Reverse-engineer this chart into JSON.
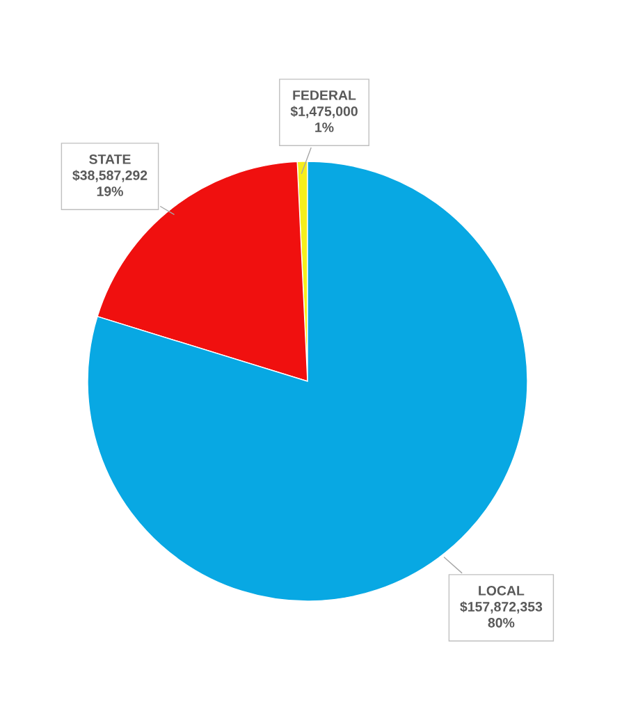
{
  "chart_data": {
    "type": "pie",
    "categories": [
      "FEDERAL",
      "STATE",
      "LOCAL"
    ],
    "values": [
      1475000,
      38587292,
      157872353
    ],
    "colors": [
      "#f5ee1c",
      "#f0100f",
      "#08a8e3"
    ],
    "value_labels": [
      "$1,475,000\n1%",
      "$38,587,292\n19%",
      "$157,872,353\n80%"
    ],
    "legend": false
  }
}
